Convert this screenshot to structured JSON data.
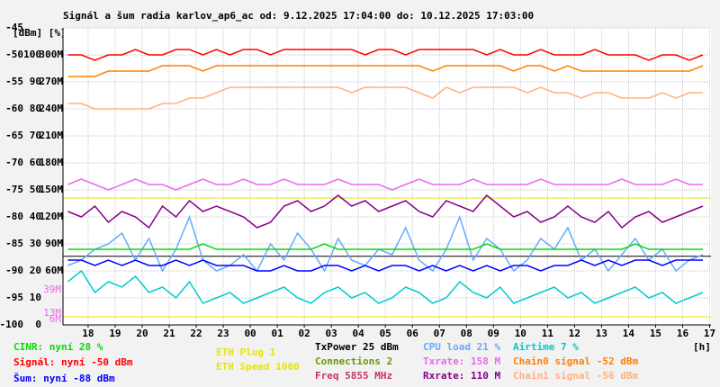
{
  "chart_data": {
    "type": "line",
    "title": "Signál a šum radia karlov_ap6_ac od: 9.12.2025 17:04:00 do: 10.12.2025 17:03:00",
    "ylabel": "[dBm] [%]",
    "xlabel": "[h]",
    "xlim": [
      17.07,
      41.05
    ],
    "xticks": [
      18,
      19,
      20,
      21,
      22,
      23,
      {
        "value": 24,
        "label": "00"
      },
      {
        "value": 25,
        "label": "01"
      },
      {
        "value": 26,
        "label": "02"
      },
      {
        "value": 27,
        "label": "03"
      },
      {
        "value": 28,
        "label": "04"
      },
      {
        "value": 29,
        "label": "05"
      },
      {
        "value": 30,
        "label": "06"
      },
      {
        "value": 31,
        "label": "07"
      },
      {
        "value": 32,
        "label": "08"
      },
      {
        "value": 33,
        "label": "09"
      },
      {
        "value": 34,
        "label": "10"
      },
      {
        "value": 35,
        "label": "11"
      },
      {
        "value": 36,
        "label": "12"
      },
      {
        "value": 37,
        "label": "13"
      },
      {
        "value": 38,
        "label": "14"
      },
      {
        "value": 39,
        "label": "15"
      },
      {
        "value": 40,
        "label": "16"
      },
      {
        "value": 41,
        "label": "17"
      }
    ],
    "ylim": [
      -100,
      -45
    ],
    "yticks": [
      -45,
      -50,
      -55,
      -60,
      -65,
      -70,
      -75,
      -80,
      -85,
      -90,
      -95,
      -100
    ],
    "yticks_pct": [
      {
        "value": -50,
        "label": "100"
      },
      {
        "value": -55,
        "label": "90"
      },
      {
        "value": -60,
        "label": "80"
      },
      {
        "value": -65,
        "label": "70"
      },
      {
        "value": -70,
        "label": "60"
      },
      {
        "value": -75,
        "label": "50"
      },
      {
        "value": -80,
        "label": "40"
      },
      {
        "value": -85,
        "label": "30"
      },
      {
        "value": -90,
        "label": "20"
      },
      {
        "value": -95,
        "label": "10"
      },
      {
        "value": -100,
        "label": "0"
      }
    ],
    "yticks_rate": [
      {
        "value": -50,
        "label": "300M"
      },
      {
        "value": -55,
        "label": "270M"
      },
      {
        "value": -60,
        "label": "240M"
      },
      {
        "value": -65,
        "label": "210M"
      },
      {
        "value": -70,
        "label": "180M"
      },
      {
        "value": -75,
        "label": "150M"
      },
      {
        "value": -80,
        "label": "120M"
      },
      {
        "value": -85,
        "label": "90M"
      },
      {
        "value": -90,
        "label": "60M"
      }
    ],
    "annotations": [
      {
        "text": "39M",
        "y": -93.5,
        "color": "#ee66ee"
      },
      {
        "text": "13M",
        "y": -97.8,
        "color": "#ee66ee"
      },
      {
        "text": "6M",
        "y": -99,
        "color": "#ee66ee"
      }
    ],
    "grid": true,
    "x": [
      17.25,
      17.75,
      18.25,
      18.75,
      19.25,
      19.75,
      20.25,
      20.75,
      21.25,
      21.75,
      22.25,
      22.75,
      23.25,
      23.75,
      24.25,
      24.75,
      25.25,
      25.75,
      26.25,
      26.75,
      27.25,
      27.75,
      28.25,
      28.75,
      29.25,
      29.75,
      30.25,
      30.75,
      31.25,
      31.75,
      32.25,
      32.75,
      33.25,
      33.75,
      34.25,
      34.75,
      35.25,
      35.75,
      36.25,
      36.75,
      37.25,
      37.75,
      38.25,
      38.75,
      39.25,
      39.75,
      40.25,
      40.75
    ],
    "series": [
      {
        "name": "Chain1 signal -56 dBm",
        "color": "#ffb080",
        "values": [
          -59,
          -59,
          -60,
          -60,
          -60,
          -60,
          -60,
          -59,
          -59,
          -58,
          -58,
          -57,
          -56,
          -56,
          -56,
          -56,
          -56,
          -56,
          -56,
          -56,
          -56,
          -57,
          -56,
          -56,
          -56,
          -56,
          -57,
          -58,
          -56,
          -57,
          -56,
          -56,
          -56,
          -56,
          -57,
          -56,
          -57,
          -57,
          -58,
          -57,
          -57,
          -58,
          -58,
          -58,
          -57,
          -58,
          -57,
          -57
        ]
      },
      {
        "name": "Chain0 signal -52 dBm",
        "color": "#ff8000",
        "values": [
          -54,
          -54,
          -54,
          -53,
          -53,
          -53,
          -53,
          -52,
          -52,
          -52,
          -53,
          -52,
          -52,
          -52,
          -52,
          -52,
          -52,
          -52,
          -52,
          -52,
          -52,
          -52,
          -52,
          -52,
          -52,
          -52,
          -52,
          -53,
          -52,
          -52,
          -52,
          -52,
          -52,
          -53,
          -52,
          -52,
          -53,
          -52,
          -53,
          -53,
          -53,
          -53,
          -53,
          -53,
          -53,
          -53,
          -53,
          -52
        ]
      },
      {
        "name": "Signál: nyní -50 dBm",
        "color": "#ff0000",
        "values": [
          -50,
          -50,
          -51,
          -50,
          -50,
          -49,
          -50,
          -50,
          -49,
          -49,
          -50,
          -49,
          -50,
          -49,
          -49,
          -50,
          -49,
          -49,
          -49,
          -49,
          -49,
          -49,
          -50,
          -49,
          -49,
          -50,
          -49,
          -49,
          -49,
          -49,
          -49,
          -50,
          -49,
          -50,
          -50,
          -49,
          -50,
          -50,
          -50,
          -49,
          -50,
          -50,
          -50,
          -51,
          -50,
          -50,
          -51,
          -50
        ]
      },
      {
        "name": "Txrate: 158 M",
        "color": "#ee66ee",
        "values": [
          -74,
          -73,
          -74,
          -75,
          -74,
          -73,
          -74,
          -74,
          -75,
          -74,
          -73,
          -74,
          -74,
          -73,
          -74,
          -74,
          -73,
          -74,
          -74,
          -74,
          -73,
          -74,
          -74,
          -74,
          -75,
          -74,
          -73,
          -74,
          -74,
          -74,
          -73,
          -74,
          -74,
          -74,
          -74,
          -73,
          -74,
          -74,
          -74,
          -74,
          -74,
          -73,
          -74,
          -74,
          -74,
          -73,
          -74,
          -74
        ]
      },
      {
        "name": "Rxrate: 110 M",
        "color": "#880088",
        "values": [
          -79,
          -80,
          -78,
          -81,
          -79,
          -80,
          -82,
          -78,
          -80,
          -77,
          -79,
          -78,
          -79,
          -80,
          -82,
          -81,
          -78,
          -77,
          -79,
          -78,
          -76,
          -78,
          -77,
          -79,
          -78,
          -77,
          -79,
          -80,
          -77,
          -78,
          -79,
          -76,
          -78,
          -80,
          -79,
          -81,
          -80,
          -78,
          -80,
          -81,
          -79,
          -82,
          -80,
          -79,
          -81,
          -80,
          -79,
          -78
        ]
      },
      {
        "name": "CPU load 21 %",
        "color": "#66aaff",
        "values": [
          -89,
          -88,
          -86,
          -85,
          -83,
          -88,
          -84,
          -90,
          -86,
          -80,
          -88,
          -90,
          -89,
          -87,
          -90,
          -85,
          -88,
          -83,
          -86,
          -90,
          -84,
          -88,
          -89,
          -86,
          -87,
          -82,
          -88,
          -90,
          -86,
          -80,
          -88,
          -84,
          -86,
          -90,
          -88,
          -84,
          -86,
          -82,
          -88,
          -86,
          -90,
          -87,
          -84,
          -88,
          -86,
          -90,
          -88,
          -87
        ]
      },
      {
        "name": "Airtime 7 %",
        "color": "#00cccc",
        "values": [
          -92,
          -90,
          -94,
          -92,
          -93,
          -91,
          -94,
          -93,
          -95,
          -92,
          -96,
          -95,
          -94,
          -96,
          -95,
          -94,
          -93,
          -95,
          -96,
          -94,
          -93,
          -95,
          -94,
          -96,
          -95,
          -93,
          -94,
          -96,
          -95,
          -92,
          -94,
          -95,
          -93,
          -96,
          -95,
          -94,
          -93,
          -95,
          -94,
          -96,
          -95,
          -94,
          -93,
          -95,
          -94,
          -96,
          -95,
          -94
        ]
      },
      {
        "name": "CINR: nyní 28 %",
        "color": "#00e000",
        "values": [
          -86,
          -86,
          -86,
          -86,
          -86,
          -86,
          -86,
          -86,
          -86,
          -86,
          -85,
          -86,
          -86,
          -86,
          -86,
          -86,
          -86,
          -86,
          -86,
          -85,
          -86,
          -86,
          -86,
          -86,
          -86,
          -86,
          -86,
          -86,
          -86,
          -86,
          -86,
          -85,
          -86,
          -86,
          -86,
          -86,
          -86,
          -86,
          -86,
          -86,
          -86,
          -86,
          -85,
          -86,
          -86,
          -86,
          -86,
          -86
        ]
      },
      {
        "name": "Šum: nyní -88 dBm",
        "color": "#0000ff",
        "values": [
          -88,
          -88,
          -89,
          -88,
          -89,
          -88,
          -89,
          -89,
          -88,
          -89,
          -88,
          -89,
          -89,
          -89,
          -90,
          -90,
          -89,
          -90,
          -90,
          -89,
          -89,
          -90,
          -89,
          -90,
          -89,
          -89,
          -90,
          -89,
          -90,
          -89,
          -90,
          -89,
          -90,
          -89,
          -89,
          -90,
          -89,
          -89,
          -88,
          -89,
          -88,
          -89,
          -88,
          -88,
          -89,
          -88,
          -88,
          -88
        ]
      }
    ],
    "legend_extra": [
      {
        "name": "ETH Plug 1",
        "color": "#e6e600",
        "level": -98.5
      },
      {
        "name": "ETH Speed 1000",
        "color": "#e6e600",
        "level": -76.5
      },
      {
        "name": "TxPower 25 dBm",
        "color": "#000000",
        "level": -87.3
      },
      {
        "name": "Connections 2",
        "color": "#669900"
      },
      {
        "name": "Freq 5855 MHz",
        "color": "#cc3366"
      }
    ]
  }
}
